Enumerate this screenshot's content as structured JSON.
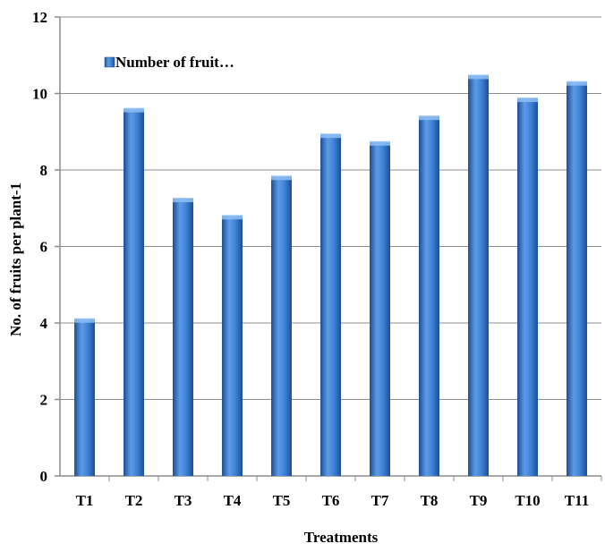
{
  "chart_data": {
    "type": "bar",
    "title": "",
    "xlabel": "Treatments",
    "ylabel": "No. of fruits per plant-1",
    "categories": [
      "T1",
      "T2",
      "T3",
      "T4",
      "T5",
      "T6",
      "T7",
      "T8",
      "T9",
      "T10",
      "T11"
    ],
    "series": [
      {
        "name": "Number of fruit…",
        "values": [
          4.1,
          9.6,
          7.25,
          6.8,
          7.83,
          8.93,
          8.73,
          9.4,
          10.47,
          9.87,
          10.3
        ]
      }
    ],
    "ylim": [
      0,
      12
    ],
    "yticks": [
      "0",
      "2",
      "4",
      "6",
      "8",
      "10",
      "12"
    ],
    "grid": true,
    "legend_position": "top-left",
    "colors": {
      "bar": "#2f6fbe",
      "bar_light": "#5c9be6",
      "bar_dark": "#1c4f95",
      "grid": "#8c8c8c"
    }
  }
}
